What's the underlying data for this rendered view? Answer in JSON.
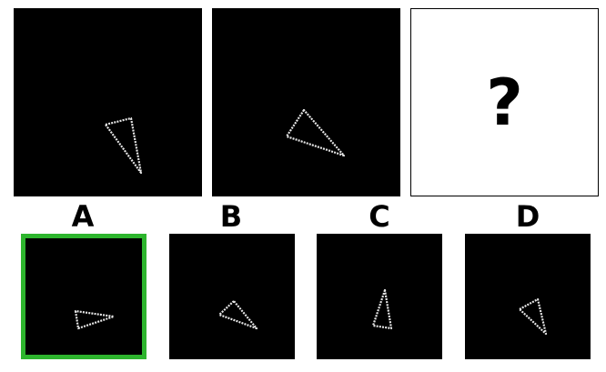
{
  "puzzle": {
    "question_mark": "?",
    "selected_option": "A",
    "selection_color": "#2db52d",
    "options": [
      {
        "label": "A"
      },
      {
        "label": "B"
      },
      {
        "label": "C"
      },
      {
        "label": "D"
      }
    ]
  }
}
